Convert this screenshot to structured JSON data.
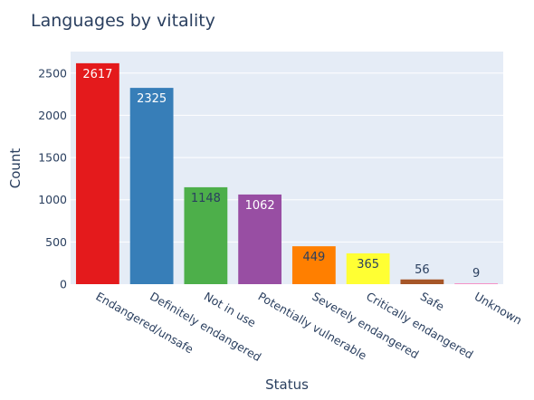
{
  "chart_data": {
    "type": "bar",
    "title": "Languages by vitality",
    "xlabel": "Status",
    "ylabel": "Count",
    "categories": [
      "Endangered/unsafe",
      "Definitely endangered",
      "Not in use",
      "Potentially vulnerable",
      "Severely endangered",
      "Critically endangered",
      "Safe",
      "Unknown"
    ],
    "values": [
      2617,
      2325,
      1148,
      1062,
      449,
      365,
      56,
      9
    ],
    "colors": [
      "#e41a1c",
      "#377eb8",
      "#4daf4a",
      "#984ea3",
      "#ff7f00",
      "#ffff33",
      "#a65628",
      "#f781bf"
    ],
    "label_colors": [
      "#ffffff",
      "#ffffff",
      "#2a3f5f",
      "#ffffff",
      "#2a3f5f",
      "#2a3f5f",
      "#2a3f5f",
      "#2a3f5f"
    ],
    "yticks": [
      0,
      500,
      1000,
      1500,
      2000,
      2500
    ],
    "ylim": [
      0,
      2755
    ],
    "grid": true,
    "plot_background": "#e5ecf6"
  }
}
